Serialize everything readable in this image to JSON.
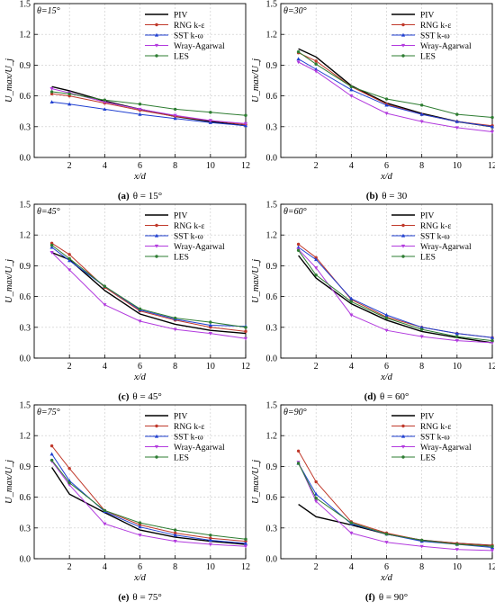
{
  "series_styles": [
    {
      "name": "PIV",
      "color": "#000000",
      "marker": "none"
    },
    {
      "name": "RNG k-ε",
      "color": "#c0392b",
      "marker": "circle"
    },
    {
      "name": "SST k-ω",
      "color": "#1f3fd1",
      "marker": "triangle"
    },
    {
      "name": "Wray-Agarwal",
      "color": "#b23bde",
      "marker": "triangle-down"
    },
    {
      "name": "LES",
      "color": "#2e7d32",
      "marker": "circle"
    }
  ],
  "chart_data": [
    {
      "type": "line",
      "panel_label": "θ=15°",
      "caption_prefix": "(a)",
      "caption_text": "θ = 15°",
      "xlabel": "x/d",
      "ylabel": "U_max/U_j",
      "xlim": [
        0,
        12
      ],
      "ylim": [
        0,
        1.5
      ],
      "x_ticks": [
        2,
        4,
        6,
        8,
        10,
        12
      ],
      "y_ticks": [
        0.0,
        0.3,
        0.6,
        0.9,
        1.2,
        1.5
      ],
      "y_tick_labels": [
        "0.0",
        "0.3",
        "0.6",
        "0.9",
        "1.2",
        "1.5"
      ],
      "grid": true,
      "legend": "top-right",
      "x": [
        1,
        2,
        4,
        6,
        8,
        10,
        12
      ],
      "series": [
        {
          "name": "PIV",
          "values": [
            0.69,
            0.65,
            0.55,
            0.47,
            0.4,
            0.35,
            0.31
          ]
        },
        {
          "name": "RNG k-ε",
          "values": [
            0.62,
            0.6,
            0.53,
            0.46,
            0.4,
            0.36,
            0.32
          ]
        },
        {
          "name": "SST k-ω",
          "values": [
            0.54,
            0.52,
            0.47,
            0.42,
            0.38,
            0.34,
            0.31
          ]
        },
        {
          "name": "Wray-Agarwal",
          "values": [
            0.67,
            0.63,
            0.54,
            0.47,
            0.41,
            0.36,
            0.33
          ]
        },
        {
          "name": "LES",
          "values": [
            0.64,
            0.62,
            0.56,
            0.52,
            0.47,
            0.44,
            0.41
          ]
        }
      ]
    },
    {
      "type": "line",
      "panel_label": "θ=30°",
      "caption_prefix": "(b)",
      "caption_text": "θ = 30",
      "xlabel": "x/d",
      "ylabel": "U_max/U_j",
      "xlim": [
        0,
        12
      ],
      "ylim": [
        0,
        1.5
      ],
      "x_ticks": [
        2,
        4,
        6,
        8,
        10,
        12
      ],
      "y_ticks": [
        0.0,
        0.3,
        0.6,
        0.9,
        1.2,
        1.5
      ],
      "y_tick_labels": [
        "0.0",
        "0.3",
        "0.6",
        "0.9",
        "1.2",
        "1.5"
      ],
      "grid": true,
      "legend": "top-right",
      "x": [
        1,
        2,
        4,
        6,
        8,
        10,
        12
      ],
      "series": [
        {
          "name": "PIV",
          "values": [
            1.06,
            0.98,
            0.7,
            0.53,
            0.43,
            0.35,
            0.3
          ]
        },
        {
          "name": "RNG k-ε",
          "values": [
            1.02,
            0.94,
            0.69,
            0.52,
            0.42,
            0.35,
            0.31
          ]
        },
        {
          "name": "SST k-ω",
          "values": [
            0.96,
            0.86,
            0.66,
            0.51,
            0.42,
            0.35,
            0.3
          ]
        },
        {
          "name": "Wray-Agarwal",
          "values": [
            0.93,
            0.84,
            0.6,
            0.43,
            0.35,
            0.29,
            0.25
          ]
        },
        {
          "name": "LES",
          "values": [
            1.03,
            0.91,
            0.69,
            0.57,
            0.51,
            0.42,
            0.39
          ]
        }
      ]
    },
    {
      "type": "line",
      "panel_label": "θ=45°",
      "caption_prefix": "(c)",
      "caption_text": "θ = 45°",
      "xlabel": "x/d",
      "ylabel": "U_max/U_j",
      "xlim": [
        0,
        12
      ],
      "ylim": [
        0,
        1.5
      ],
      "x_ticks": [
        2,
        4,
        6,
        8,
        10,
        12
      ],
      "y_ticks": [
        0.0,
        0.3,
        0.6,
        0.9,
        1.2,
        1.5
      ],
      "y_tick_labels": [
        "0.0",
        "0.3",
        "0.6",
        "0.9",
        "1.2",
        "1.5"
      ],
      "grid": true,
      "legend": "top-right",
      "x": [
        1,
        2,
        4,
        6,
        8,
        10,
        12
      ],
      "series": [
        {
          "name": "PIV",
          "values": [
            1.03,
            0.96,
            0.66,
            0.43,
            0.33,
            0.27,
            0.24
          ]
        },
        {
          "name": "RNG k-ε",
          "values": [
            1.12,
            1.01,
            0.69,
            0.46,
            0.37,
            0.3,
            0.26
          ]
        },
        {
          "name": "SST k-ω",
          "values": [
            1.08,
            0.95,
            0.7,
            0.47,
            0.38,
            0.32,
            0.31
          ]
        },
        {
          "name": "Wray-Agarwal",
          "values": [
            1.03,
            0.86,
            0.52,
            0.36,
            0.28,
            0.24,
            0.19
          ]
        },
        {
          "name": "LES",
          "values": [
            1.1,
            0.97,
            0.7,
            0.48,
            0.39,
            0.35,
            0.3
          ]
        }
      ]
    },
    {
      "type": "line",
      "panel_label": "θ=60°",
      "caption_prefix": "(d)",
      "caption_text": "θ = 60°",
      "xlabel": "x/d",
      "ylabel": "U_max/U_j",
      "xlim": [
        0,
        12
      ],
      "ylim": [
        0,
        1.5
      ],
      "x_ticks": [
        2,
        4,
        6,
        8,
        10,
        12
      ],
      "y_ticks": [
        0.0,
        0.3,
        0.6,
        0.9,
        1.2,
        1.5
      ],
      "y_tick_labels": [
        "0.0",
        "0.3",
        "0.6",
        "0.9",
        "1.2",
        "1.5"
      ],
      "grid": true,
      "legend": "top-right",
      "x": [
        1,
        2,
        4,
        6,
        8,
        10,
        12
      ],
      "series": [
        {
          "name": "PIV",
          "values": [
            1.0,
            0.78,
            0.53,
            0.37,
            0.26,
            0.2,
            0.15
          ]
        },
        {
          "name": "RNG k-ε",
          "values": [
            1.11,
            0.98,
            0.57,
            0.4,
            0.3,
            0.24,
            0.2
          ]
        },
        {
          "name": "SST k-ω",
          "values": [
            1.08,
            0.96,
            0.58,
            0.42,
            0.3,
            0.24,
            0.2
          ]
        },
        {
          "name": "Wray-Agarwal",
          "values": [
            1.06,
            0.88,
            0.42,
            0.27,
            0.21,
            0.17,
            0.15
          ]
        },
        {
          "name": "LES",
          "values": [
            1.05,
            0.81,
            0.55,
            0.39,
            0.28,
            0.21,
            0.17
          ]
        }
      ]
    },
    {
      "type": "line",
      "panel_label": "θ=75°",
      "caption_prefix": "(e)",
      "caption_text": "θ = 75°",
      "xlabel": "x/d",
      "ylabel": "U_max/U_j",
      "xlim": [
        0,
        12
      ],
      "ylim": [
        0,
        1.5
      ],
      "x_ticks": [
        2,
        4,
        6,
        8,
        10,
        12
      ],
      "y_ticks": [
        0.0,
        0.3,
        0.6,
        0.9,
        1.2,
        1.5
      ],
      "y_tick_labels": [
        "0.0",
        "0.3",
        "0.6",
        "0.9",
        "1.2",
        "1.5"
      ],
      "grid": true,
      "legend": "top-right",
      "x": [
        1,
        2,
        4,
        6,
        8,
        10,
        12
      ],
      "series": [
        {
          "name": "PIV",
          "values": [
            0.89,
            0.63,
            0.45,
            0.28,
            0.21,
            0.17,
            0.14
          ]
        },
        {
          "name": "RNG k-ε",
          "values": [
            1.1,
            0.88,
            0.47,
            0.33,
            0.25,
            0.2,
            0.17
          ]
        },
        {
          "name": "SST k-ω",
          "values": [
            1.02,
            0.76,
            0.46,
            0.31,
            0.23,
            0.18,
            0.15
          ]
        },
        {
          "name": "Wray-Agarwal",
          "values": [
            0.95,
            0.72,
            0.34,
            0.23,
            0.17,
            0.14,
            0.12
          ]
        },
        {
          "name": "LES",
          "values": [
            0.96,
            0.74,
            0.47,
            0.35,
            0.28,
            0.23,
            0.19
          ]
        }
      ]
    },
    {
      "type": "line",
      "panel_label": "θ=90°",
      "caption_prefix": "(f)",
      "caption_text": "θ = 90°",
      "xlabel": "x/d",
      "ylabel": "U_max/U_j",
      "xlim": [
        0,
        12
      ],
      "ylim": [
        0,
        1.5
      ],
      "x_ticks": [
        2,
        4,
        6,
        8,
        10,
        12
      ],
      "y_ticks": [
        0.0,
        0.3,
        0.6,
        0.9,
        1.2,
        1.5
      ],
      "y_tick_labels": [
        "0.0",
        "0.3",
        "0.6",
        "0.9",
        "1.2",
        "1.5"
      ],
      "grid": true,
      "legend": "top-right",
      "x": [
        1,
        2,
        4,
        6,
        8,
        10,
        12
      ],
      "series": [
        {
          "name": "PIV",
          "values": [
            0.53,
            0.41,
            0.33,
            0.24,
            0.18,
            0.15,
            0.13
          ]
        },
        {
          "name": "RNG k-ε",
          "values": [
            1.05,
            0.75,
            0.36,
            0.25,
            0.18,
            0.15,
            0.13
          ]
        },
        {
          "name": "SST k-ω",
          "values": [
            0.93,
            0.63,
            0.34,
            0.24,
            0.17,
            0.14,
            0.11
          ]
        },
        {
          "name": "Wray-Agarwal",
          "values": [
            0.94,
            0.56,
            0.25,
            0.16,
            0.12,
            0.09,
            0.08
          ]
        },
        {
          "name": "LES",
          "values": [
            0.93,
            0.59,
            0.35,
            0.24,
            0.18,
            0.14,
            0.12
          ]
        }
      ]
    }
  ]
}
